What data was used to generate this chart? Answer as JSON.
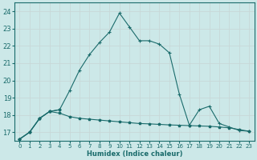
{
  "xlabel": "Humidex (Indice chaleur)",
  "bg_color": "#cce8e8",
  "grid_color": "#d0e8e8",
  "line_color": "#1a6b6b",
  "xlim": [
    -0.5,
    23.5
  ],
  "ylim": [
    16.5,
    24.5
  ],
  "yticks": [
    17,
    18,
    19,
    20,
    21,
    22,
    23,
    24
  ],
  "xticks": [
    0,
    1,
    2,
    3,
    4,
    5,
    6,
    7,
    8,
    9,
    10,
    11,
    12,
    13,
    14,
    15,
    16,
    17,
    18,
    19,
    20,
    21,
    22,
    23
  ],
  "series_flat_x": [
    0,
    1,
    2,
    3,
    4,
    5,
    6,
    7,
    8,
    9,
    10,
    11,
    12,
    13,
    14,
    15,
    16,
    17,
    18,
    19,
    20,
    21,
    22,
    23
  ],
  "series_flat_y": [
    16.6,
    17.0,
    17.8,
    18.2,
    18.1,
    17.9,
    17.8,
    17.75,
    17.7,
    17.65,
    17.6,
    17.55,
    17.5,
    17.48,
    17.45,
    17.42,
    17.4,
    17.38,
    17.36,
    17.34,
    17.3,
    17.25,
    17.15,
    17.05
  ],
  "series_rise_x": [
    0,
    1,
    2,
    3,
    4
  ],
  "series_rise_y": [
    16.6,
    17.0,
    17.8,
    18.2,
    18.3
  ],
  "series_main_x": [
    0,
    1,
    2,
    3,
    4,
    5,
    6,
    7,
    8,
    9,
    10,
    11,
    12,
    13,
    14,
    15,
    16,
    17,
    18,
    19,
    20,
    21,
    22,
    23
  ],
  "series_main_y": [
    16.6,
    17.0,
    17.8,
    18.2,
    18.3,
    19.4,
    20.6,
    21.5,
    22.2,
    22.8,
    23.9,
    23.1,
    22.3,
    22.3,
    22.1,
    21.6,
    19.2,
    17.4,
    18.3,
    18.5,
    17.5,
    17.3,
    17.1,
    17.05
  ]
}
